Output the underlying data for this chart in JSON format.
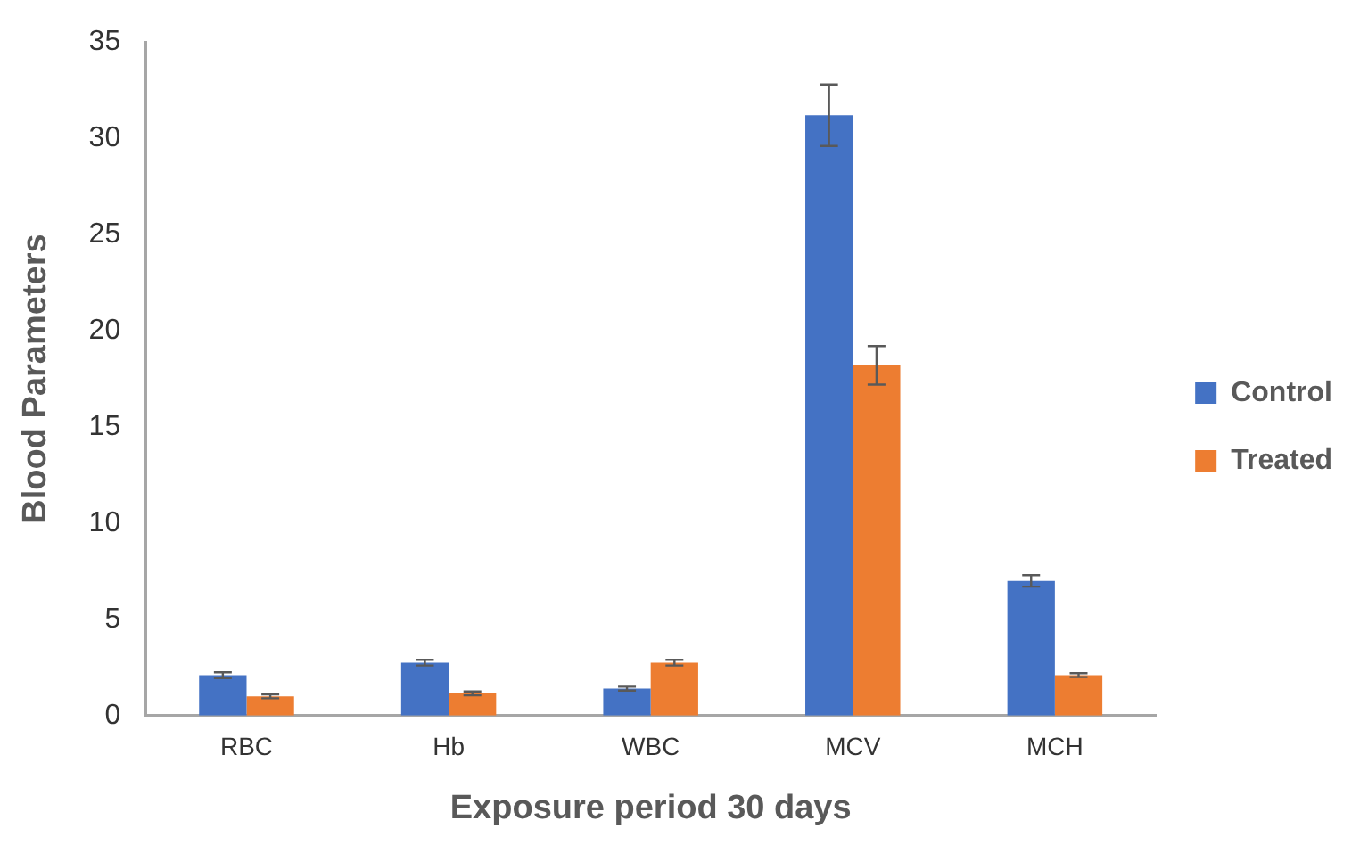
{
  "chart_data": {
    "type": "bar",
    "xlabel": "Exposure period 30 days",
    "ylabel": "Blood Parameters",
    "categories": [
      "RBC",
      "Hb",
      "WBC",
      "MCV",
      "MCH"
    ],
    "series": [
      {
        "name": "Control",
        "color": "#4472c4",
        "values": [
          2.1,
          2.75,
          1.4,
          31.2,
          7.0
        ],
        "errors": [
          0.15,
          0.15,
          0.1,
          1.6,
          0.3
        ]
      },
      {
        "name": "Treated",
        "color": "#ed7d31",
        "values": [
          1.0,
          1.15,
          2.75,
          18.2,
          2.1
        ],
        "errors": [
          0.1,
          0.1,
          0.15,
          1.0,
          0.1
        ]
      }
    ],
    "ylim": [
      0,
      35
    ],
    "yticks": [
      0,
      5,
      10,
      15,
      20,
      25,
      30,
      35
    ],
    "grid": false,
    "legend": "right"
  }
}
